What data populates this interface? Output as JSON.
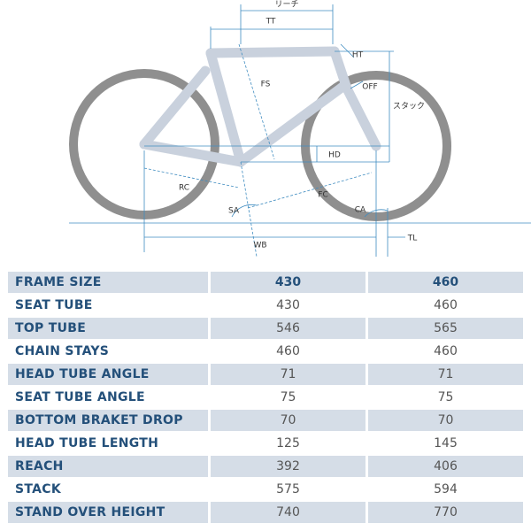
{
  "diagram": {
    "labels": {
      "reach": "リーチ",
      "tt": "TT",
      "ht": "HT",
      "fs": "FS",
      "off": "OFF",
      "stack": "スタック",
      "hd": "HD",
      "rc": "RC",
      "fc": "FC",
      "sa": "SA",
      "ca": "CA",
      "tl": "TL",
      "wb": "WB"
    }
  },
  "table": {
    "header": [
      "FRAME SIZE",
      "430",
      "460"
    ],
    "rows": [
      [
        "SEAT TUBE",
        "430",
        "460"
      ],
      [
        "TOP TUBE",
        "546",
        "565"
      ],
      [
        "CHAIN STAYS",
        "460",
        "460"
      ],
      [
        "HEAD TUBE ANGLE",
        "71",
        "71"
      ],
      [
        "SEAT TUBE ANGLE",
        "75",
        "75"
      ],
      [
        "BOTTOM BRAKET DROP",
        "70",
        "70"
      ],
      [
        "HEAD TUBE LENGTH",
        "125",
        "145"
      ],
      [
        "REACH",
        "392",
        "406"
      ],
      [
        "STACK",
        "575",
        "594"
      ],
      [
        "STAND OVER HEIGHT",
        "740",
        "770"
      ]
    ]
  }
}
